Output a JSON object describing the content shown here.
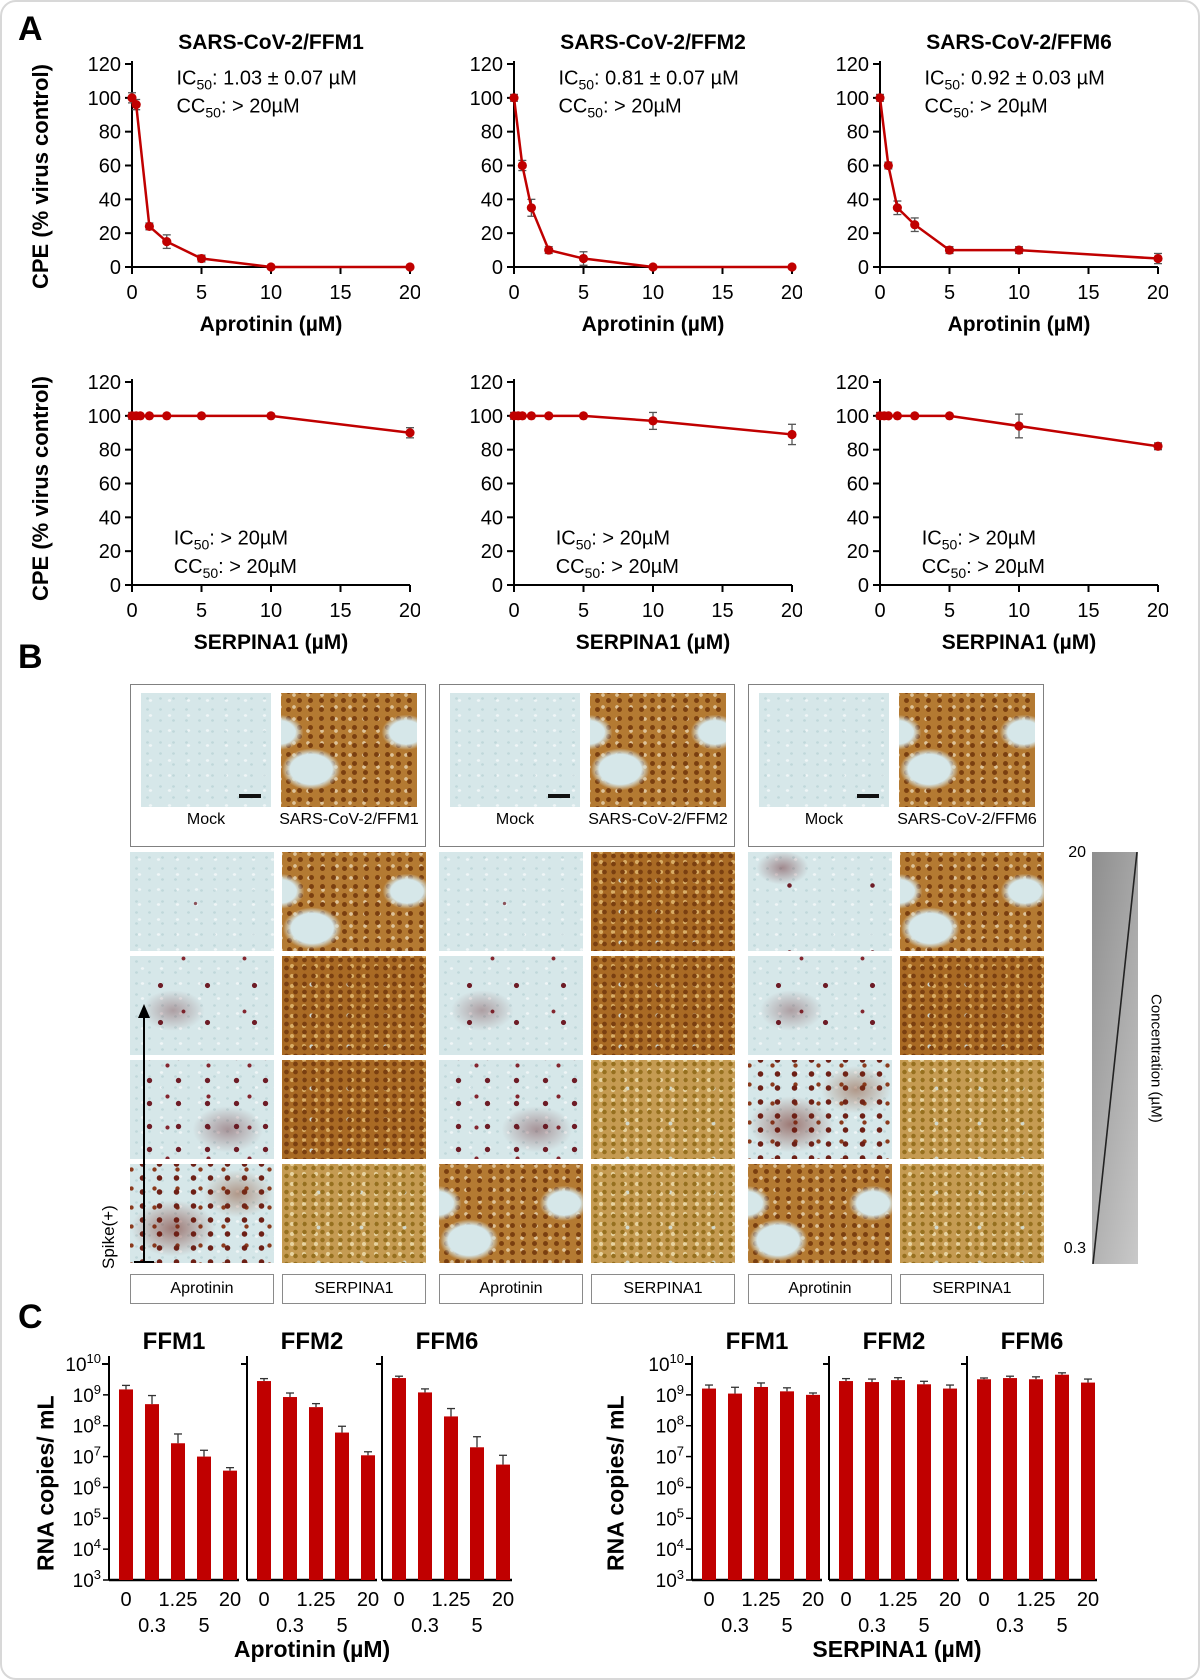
{
  "figure": {
    "panel_a": "A",
    "panel_b": "B",
    "panel_c": "C"
  },
  "panel_a": {
    "ylabel": "CPE (% virus control)"
  },
  "panel_b": {
    "spike_label": "Spike(+)",
    "conc_top": "20",
    "conc_bottom": "0.3",
    "conc_axis_label": "Concentration (µM)",
    "col_labels": [
      "Aprotinin",
      "SERPINA1"
    ],
    "groups": [
      {
        "mock_label": "Mock",
        "virus_label": "SARS-CoV-2/FFM1",
        "aprotinin_rows": [
          "blank",
          "dots-few",
          "dots-some",
          "dots-many"
        ],
        "serpina1_rows": [
          "brown-patchy",
          "brown-dense",
          "brown-dense",
          "tan-dense"
        ]
      },
      {
        "mock_label": "Mock",
        "virus_label": "SARS-CoV-2/FFM2",
        "aprotinin_rows": [
          "blank",
          "dots-few",
          "dots-some",
          "brown-patchy"
        ],
        "serpina1_rows": [
          "brown-dense",
          "brown-dense",
          "tan-dense",
          "tan-dense"
        ]
      },
      {
        "mock_label": "Mock",
        "virus_label": "SARS-CoV-2/FFM6",
        "aprotinin_rows": [
          "dots-trace",
          "dots-few",
          "dots-many",
          "brown-patchy"
        ],
        "serpina1_rows": [
          "brown-patchy",
          "brown-dense",
          "tan-dense",
          "tan-dense"
        ]
      }
    ]
  },
  "panel_c": {
    "ylabel": "RNA copies/ mL",
    "xlabel_left": "Aprotinin (µM)",
    "xlabel_right": "SERPINA1 (µM)"
  },
  "colors": {
    "series": "#c00000",
    "error": "#555555",
    "axis": "#000000"
  },
  "chart_data": [
    {
      "type": "line",
      "panel": "A",
      "title": "SARS-CoV-2/FFM1",
      "xlabel": "Aprotinin (µM)",
      "ylabel": "CPE (% virus control)",
      "xlim": [
        0,
        20
      ],
      "ylim": [
        0,
        120
      ],
      "xticks": [
        0,
        5,
        10,
        15,
        20
      ],
      "yticks": [
        0,
        20,
        40,
        60,
        80,
        100,
        120
      ],
      "x": [
        0,
        0.3,
        1.25,
        2.5,
        5,
        10,
        20
      ],
      "y": [
        100,
        96,
        24,
        15,
        5,
        0,
        0
      ],
      "yerr": [
        3,
        3,
        2,
        4,
        2,
        0,
        0
      ],
      "annotation": {
        "lines": [
          [
            "IC",
            "50",
            ": 1.03 ± 0.07 µM"
          ],
          [
            "CC",
            "50",
            ": > 20µM"
          ]
        ],
        "x": 0.16,
        "y1": 0.1,
        "y2": 0.24
      }
    },
    {
      "type": "line",
      "panel": "A",
      "title": "SARS-CoV-2/FFM2",
      "xlabel": "Aprotinin (µM)",
      "ylabel": "CPE (% virus control)",
      "xlim": [
        0,
        20
      ],
      "ylim": [
        0,
        120
      ],
      "xticks": [
        0,
        5,
        10,
        15,
        20
      ],
      "yticks": [
        0,
        20,
        40,
        60,
        80,
        100,
        120
      ],
      "x": [
        0,
        0.6,
        1.25,
        2.5,
        5,
        10,
        20
      ],
      "y": [
        100,
        60,
        35,
        10,
        5,
        0,
        0
      ],
      "yerr": [
        2,
        3,
        5,
        2,
        4,
        0,
        0
      ],
      "annotation": {
        "lines": [
          [
            "IC",
            "50",
            ": 0.81 ± 0.07 µM"
          ],
          [
            "CC",
            "50",
            ": > 20µM"
          ]
        ],
        "x": 0.16,
        "y1": 0.1,
        "y2": 0.24
      }
    },
    {
      "type": "line",
      "panel": "A",
      "title": "SARS-CoV-2/FFM6",
      "xlabel": "Aprotinin (µM)",
      "ylabel": "CPE (% virus control)",
      "xlim": [
        0,
        20
      ],
      "ylim": [
        0,
        120
      ],
      "xticks": [
        0,
        5,
        10,
        15,
        20
      ],
      "yticks": [
        0,
        20,
        40,
        60,
        80,
        100,
        120
      ],
      "x": [
        0,
        0.6,
        1.25,
        2.5,
        5,
        10,
        20
      ],
      "y": [
        100,
        60,
        35,
        25,
        10,
        10,
        5
      ],
      "yerr": [
        2,
        2,
        4,
        4,
        2,
        2,
        3
      ],
      "annotation": {
        "lines": [
          [
            "IC",
            "50",
            ": 0.92 ± 0.03 µM"
          ],
          [
            "CC",
            "50",
            ": > 20µM"
          ]
        ],
        "x": 0.16,
        "y1": 0.1,
        "y2": 0.24
      }
    },
    {
      "type": "line",
      "panel": "A",
      "title": "",
      "xlabel": "SERPINA1 (µM)",
      "ylabel": "CPE (% virus control)",
      "xlim": [
        0,
        20
      ],
      "ylim": [
        0,
        120
      ],
      "xticks": [
        0,
        5,
        10,
        15,
        20
      ],
      "yticks": [
        0,
        20,
        40,
        60,
        80,
        100,
        120
      ],
      "x": [
        0,
        0.3,
        0.6,
        1.25,
        2.5,
        5,
        10,
        20
      ],
      "y": [
        100,
        100,
        100,
        100,
        100,
        100,
        100,
        90
      ],
      "yerr": [
        2,
        0,
        0,
        0,
        0,
        0,
        0,
        3
      ],
      "annotation": {
        "lines": [
          [
            "IC",
            "50",
            ": > 20µM"
          ],
          [
            "CC",
            "50",
            ": > 20µM"
          ]
        ],
        "x": 0.15,
        "y1": 0.8,
        "y2": 0.94
      }
    },
    {
      "type": "line",
      "panel": "A",
      "title": "",
      "xlabel": "SERPINA1 (µM)",
      "ylabel": "CPE (% virus control)",
      "xlim": [
        0,
        20
      ],
      "ylim": [
        0,
        120
      ],
      "xticks": [
        0,
        5,
        10,
        15,
        20
      ],
      "yticks": [
        0,
        20,
        40,
        60,
        80,
        100,
        120
      ],
      "x": [
        0,
        0.3,
        0.6,
        1.25,
        2.5,
        5,
        10,
        20
      ],
      "y": [
        100,
        100,
        100,
        100,
        100,
        100,
        97,
        89
      ],
      "yerr": [
        2,
        0,
        0,
        0,
        0,
        0,
        5,
        6
      ],
      "annotation": {
        "lines": [
          [
            "IC",
            "50",
            ": > 20µM"
          ],
          [
            "CC",
            "50",
            ": > 20µM"
          ]
        ],
        "x": 0.15,
        "y1": 0.8,
        "y2": 0.94
      }
    },
    {
      "type": "line",
      "panel": "A",
      "title": "",
      "xlabel": "SERPINA1 (µM)",
      "ylabel": "CPE (% virus control)",
      "xlim": [
        0,
        20
      ],
      "ylim": [
        0,
        120
      ],
      "xticks": [
        0,
        5,
        10,
        15,
        20
      ],
      "yticks": [
        0,
        20,
        40,
        60,
        80,
        100,
        120
      ],
      "x": [
        0,
        0.3,
        0.6,
        1.25,
        2.5,
        5,
        10,
        20
      ],
      "y": [
        100,
        100,
        100,
        100,
        100,
        100,
        94,
        82
      ],
      "yerr": [
        2,
        0,
        0,
        0,
        0,
        0,
        7,
        2
      ],
      "annotation": {
        "lines": [
          [
            "IC",
            "50",
            ": > 20µM"
          ],
          [
            "CC",
            "50",
            ": > 20µM"
          ]
        ],
        "x": 0.15,
        "y1": 0.8,
        "y2": 0.94
      }
    },
    {
      "type": "bar",
      "panel": "C",
      "group": "Aprotinin",
      "title": "FFM1",
      "log": true,
      "ylabel": "RNA copies/ mL",
      "ylim": [
        1000.0,
        10000000000.0
      ],
      "show_ylabels": true,
      "categories": [
        "0",
        "0.3",
        "1.25",
        "5",
        "20"
      ],
      "values": [
        1500000000.0,
        500000000.0,
        27000000.0,
        10000000.0,
        3500000.0
      ],
      "err_factor": [
        1.35,
        1.9,
        2.0,
        1.6,
        1.25
      ]
    },
    {
      "type": "bar",
      "panel": "C",
      "group": "Aprotinin",
      "title": "FFM2",
      "log": true,
      "ylabel": "RNA copies/ mL",
      "ylim": [
        1000.0,
        10000000000.0
      ],
      "show_ylabels": false,
      "categories": [
        "0",
        "0.3",
        "1.25",
        "5",
        "20"
      ],
      "values": [
        2800000000.0,
        850000000.0,
        400000000.0,
        60000000.0,
        11000000.0
      ],
      "err_factor": [
        1.2,
        1.35,
        1.3,
        1.6,
        1.3
      ]
    },
    {
      "type": "bar",
      "panel": "C",
      "group": "Aprotinin",
      "title": "FFM6",
      "log": true,
      "ylabel": "RNA copies/ mL",
      "ylim": [
        1000.0,
        10000000000.0
      ],
      "show_ylabels": false,
      "categories": [
        "0",
        "0.3",
        "1.25",
        "5",
        "20"
      ],
      "values": [
        3500000000.0,
        1200000000.0,
        200000000.0,
        20000000.0,
        5500000.0
      ],
      "err_factor": [
        1.15,
        1.3,
        1.8,
        2.2,
        2.0
      ]
    },
    {
      "type": "bar",
      "panel": "C",
      "group": "SERPINA1",
      "title": "FFM1",
      "log": true,
      "ylabel": "RNA copies/ mL",
      "ylim": [
        1000.0,
        10000000000.0
      ],
      "show_ylabels": true,
      "categories": [
        "0",
        "0.3",
        "1.25",
        "5",
        "20"
      ],
      "values": [
        1600000000.0,
        1100000000.0,
        1800000000.0,
        1300000000.0,
        1000000000.0
      ],
      "err_factor": [
        1.3,
        1.6,
        1.35,
        1.3,
        1.15
      ]
    },
    {
      "type": "bar",
      "panel": "C",
      "group": "SERPINA1",
      "title": "FFM2",
      "log": true,
      "ylabel": "RNA copies/ mL",
      "ylim": [
        1000.0,
        10000000000.0
      ],
      "show_ylabels": false,
      "categories": [
        "0",
        "0.3",
        "1.25",
        "5",
        "20"
      ],
      "values": [
        2800000000.0,
        2600000000.0,
        3000000000.0,
        2200000000.0,
        1600000000.0
      ],
      "err_factor": [
        1.2,
        1.25,
        1.2,
        1.25,
        1.3
      ]
    },
    {
      "type": "bar",
      "panel": "C",
      "group": "SERPINA1",
      "title": "FFM6",
      "log": true,
      "ylabel": "RNA copies/ mL",
      "ylim": [
        1000.0,
        10000000000.0
      ],
      "show_ylabels": false,
      "categories": [
        "0",
        "0.3",
        "1.25",
        "5",
        "20"
      ],
      "values": [
        3200000000.0,
        3500000000.0,
        3200000000.0,
        4500000000.0,
        2500000000.0
      ],
      "err_factor": [
        1.1,
        1.15,
        1.2,
        1.15,
        1.3
      ]
    }
  ]
}
